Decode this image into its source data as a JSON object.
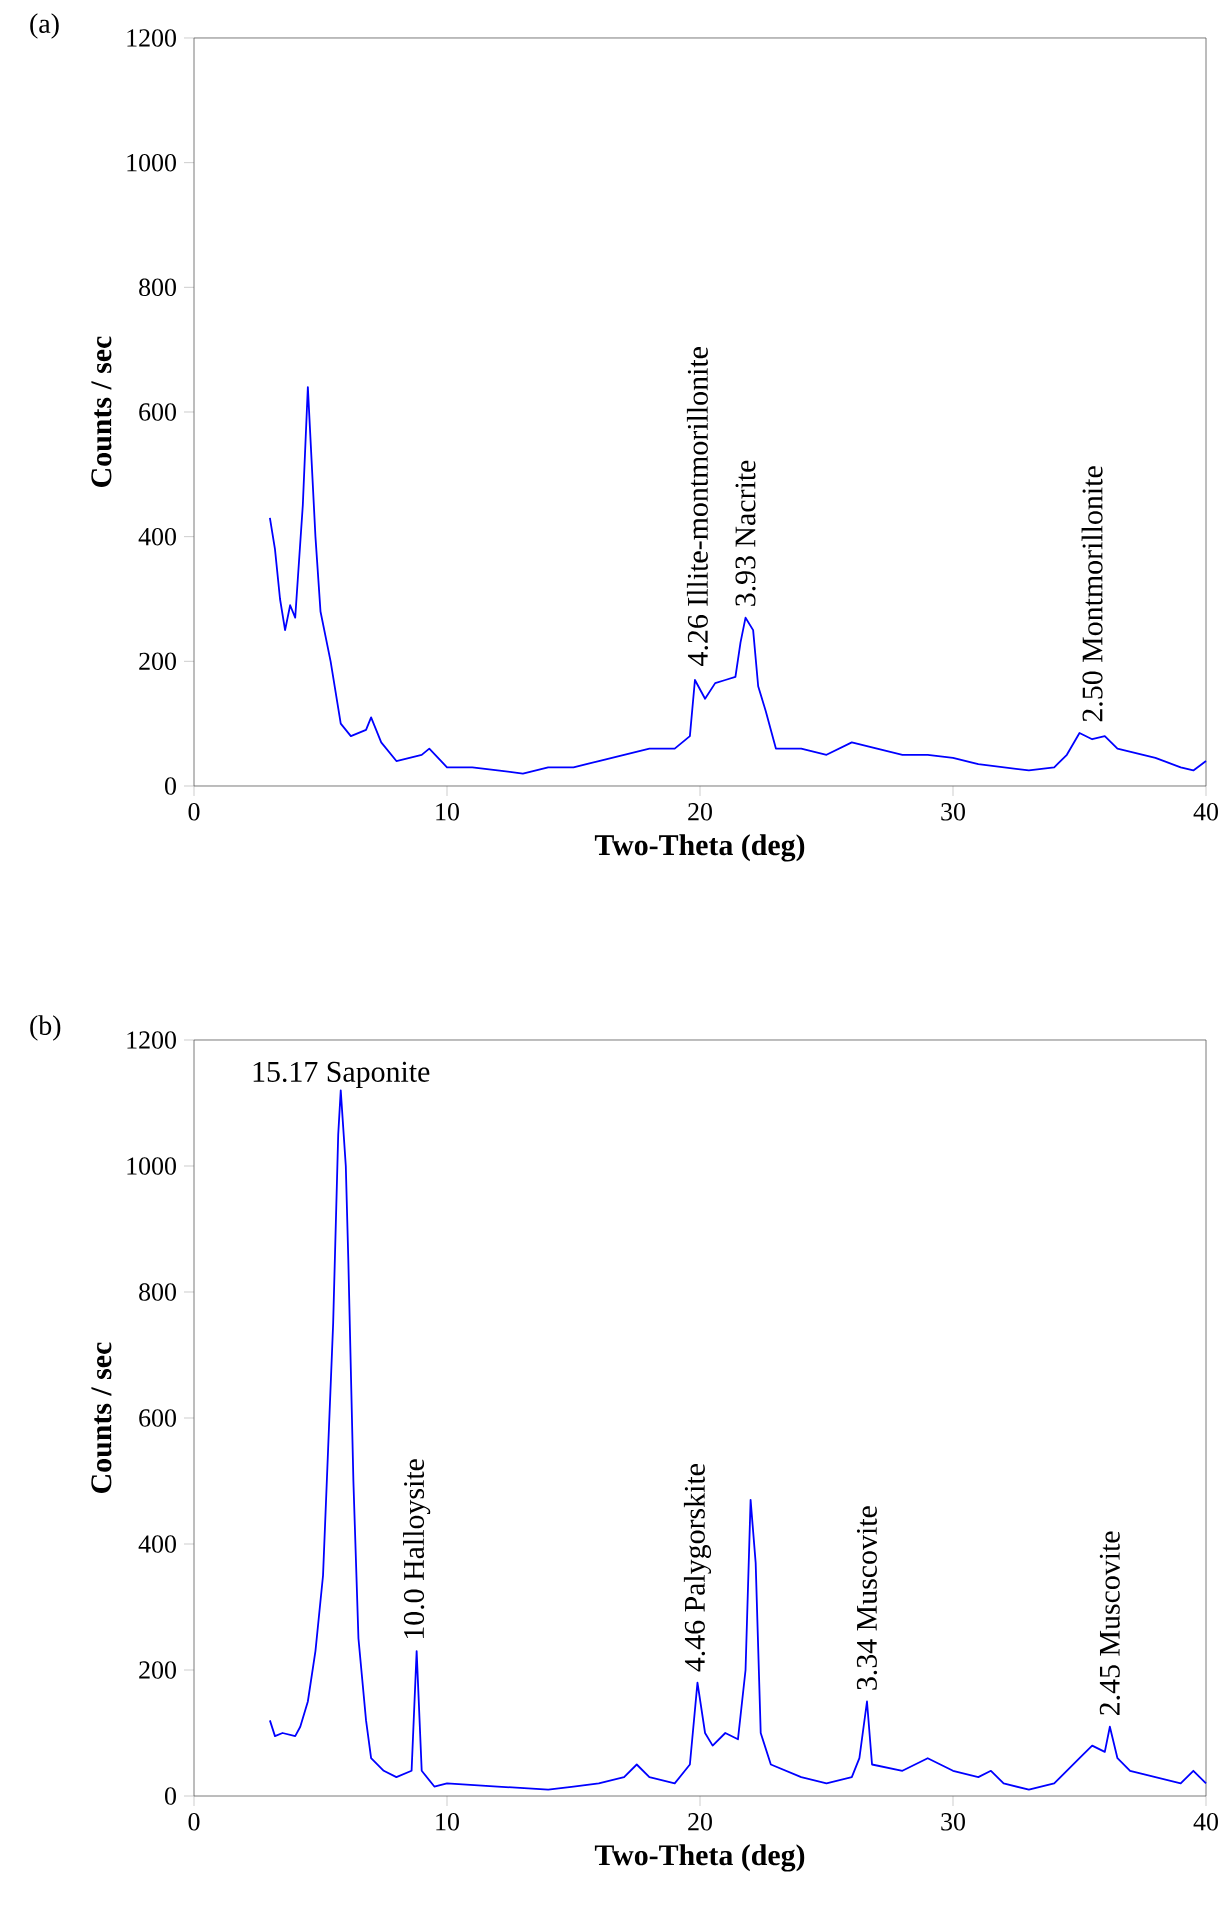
{
  "chart_data": [
    {
      "type": "line",
      "title": "(a)",
      "xlabel": "Two-Theta (deg)",
      "ylabel": "Counts / sec",
      "xlim": [
        0,
        40
      ],
      "ylim": [
        0,
        1200
      ],
      "xticks": [
        0,
        10,
        20,
        30,
        40
      ],
      "yticks": [
        0,
        200,
        400,
        600,
        800,
        1000,
        1200
      ],
      "grid": false,
      "series": [
        {
          "color": "#0000ff",
          "x": [
            3.0,
            3.2,
            3.4,
            3.6,
            3.8,
            4.0,
            4.1,
            4.3,
            4.5,
            4.6,
            4.8,
            5.0,
            5.4,
            5.8,
            6.2,
            6.8,
            7.0,
            7.4,
            8,
            9,
            9.3,
            10,
            11,
            12,
            13,
            14,
            15,
            16,
            17,
            18,
            19,
            19.6,
            19.8,
            20.2,
            20.6,
            21,
            21.4,
            21.6,
            21.8,
            22.1,
            22.3,
            22.6,
            23,
            24,
            25,
            26,
            27,
            28,
            29,
            30,
            31,
            32,
            33,
            34,
            34.5,
            35,
            35.5,
            36,
            36.5,
            37,
            38,
            39,
            39.5,
            40
          ],
          "values": [
            430,
            380,
            300,
            250,
            290,
            270,
            330,
            450,
            640,
            560,
            400,
            280,
            200,
            100,
            80,
            90,
            110,
            70,
            40,
            50,
            60,
            30,
            30,
            25,
            20,
            30,
            30,
            40,
            50,
            60,
            60,
            80,
            170,
            140,
            165,
            170,
            175,
            230,
            270,
            250,
            160,
            120,
            60,
            60,
            50,
            70,
            60,
            50,
            50,
            45,
            35,
            30,
            25,
            30,
            50,
            85,
            75,
            80,
            60,
            55,
            45,
            30,
            25,
            40
          ]
        }
      ],
      "annotations": [
        {
          "text": "4.26 Illite-montmorillonite",
          "x": 19.9,
          "y": 175
        },
        {
          "text": "3.93 Nacrite",
          "x": 21.8,
          "y": 270
        },
        {
          "text": "2.50 Montmorillonite",
          "x": 35.5,
          "y": 85
        }
      ]
    },
    {
      "type": "line",
      "title": "(b)",
      "xlabel": "Two-Theta (deg)",
      "ylabel": "Counts / sec",
      "xlim": [
        0,
        40
      ],
      "ylim": [
        0,
        1200
      ],
      "xticks": [
        0,
        10,
        20,
        30,
        40
      ],
      "yticks": [
        0,
        200,
        400,
        600,
        800,
        1000,
        1200
      ],
      "grid": false,
      "series": [
        {
          "color": "#0000ff",
          "x": [
            3.0,
            3.2,
            3.5,
            4.0,
            4.2,
            4.5,
            4.8,
            5.1,
            5.3,
            5.5,
            5.7,
            5.8,
            6.0,
            6.1,
            6.3,
            6.5,
            6.8,
            7.0,
            7.5,
            8,
            8.6,
            8.8,
            9.0,
            9.5,
            10,
            12,
            14,
            15,
            16,
            17,
            17.5,
            18,
            19,
            19.6,
            19.9,
            20.2,
            20.5,
            21,
            21.5,
            21.8,
            22.0,
            22.2,
            22.4,
            22.8,
            24,
            25,
            26,
            26.3,
            26.6,
            26.8,
            28,
            29,
            30,
            31,
            31.5,
            32,
            33,
            34,
            35,
            35.5,
            36,
            36.2,
            36.5,
            37,
            38,
            39,
            39.5,
            40
          ],
          "values": [
            120,
            95,
            100,
            95,
            110,
            150,
            230,
            350,
            550,
            750,
            1050,
            1120,
            1000,
            850,
            500,
            250,
            120,
            60,
            40,
            30,
            40,
            230,
            40,
            15,
            20,
            15,
            10,
            15,
            20,
            30,
            50,
            30,
            20,
            50,
            180,
            100,
            80,
            100,
            90,
            200,
            470,
            370,
            100,
            50,
            30,
            20,
            30,
            60,
            150,
            50,
            40,
            60,
            40,
            30,
            40,
            20,
            10,
            20,
            60,
            80,
            70,
            110,
            60,
            40,
            30,
            20,
            40,
            20
          ]
        }
      ],
      "annotations": [
        {
          "text": "15.17 Saponite",
          "x": 5.8,
          "y": 1120
        },
        {
          "text": "10.0 Halloysite",
          "x": 8.8,
          "y": 230
        },
        {
          "text": "4.46 Palygorskite",
          "x": 19.9,
          "y": 180
        },
        {
          "text": "3.34 Muscovite",
          "x": 26.6,
          "y": 150
        },
        {
          "text": "2.45 Muscovite",
          "x": 36.2,
          "y": 110
        }
      ]
    }
  ]
}
